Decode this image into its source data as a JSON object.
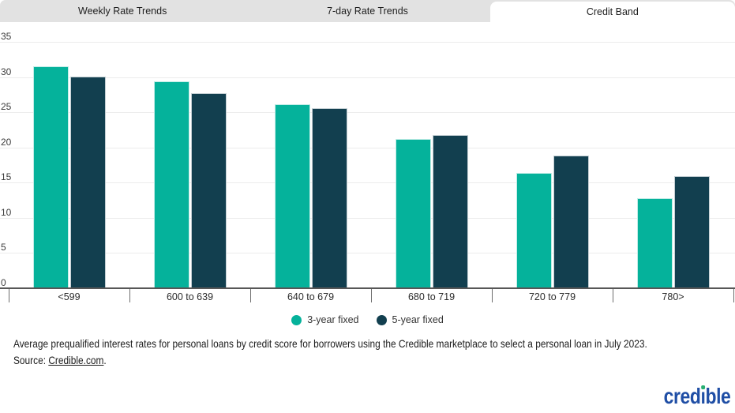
{
  "tabs": [
    {
      "label": "Weekly Rate Trends",
      "active": false
    },
    {
      "label": "7-day Rate Trends",
      "active": false
    },
    {
      "label": "Credit Band",
      "active": true
    }
  ],
  "chart_data": {
    "type": "bar",
    "title": "",
    "xlabel": "",
    "ylabel": "",
    "categories": [
      "<599",
      "600 to 639",
      "640 to 679",
      "680 to 719",
      "720 to 779",
      "780>"
    ],
    "series": [
      {
        "name": "3-year fixed",
        "color": "#05B29B",
        "values": [
          31.5,
          29.4,
          26.2,
          21.2,
          16.4,
          12.8
        ]
      },
      {
        "name": "5-year fixed",
        "color": "#123F4F",
        "values": [
          30.1,
          27.7,
          25.6,
          21.8,
          18.8,
          15.9
        ]
      }
    ],
    "ylim": [
      0,
      35
    ],
    "yticks": [
      0,
      5,
      10,
      15,
      20,
      25,
      30,
      35
    ],
    "grid": true,
    "legend_position": "bottom"
  },
  "caption": {
    "line1": "Average prequalified interest rates for personal loans by credit score for borrowers using the Credible marketplace to select a personal loan in July 2023.",
    "source_prefix": "Source: ",
    "source_link": "Credible.com",
    "source_suffix": "."
  },
  "logo": {
    "part1": "cred",
    "dotless_i": "ı",
    "part2": "ble"
  },
  "colors": {
    "teal": "#05B29B",
    "dark_teal": "#123F4F",
    "tab_bg": "#E2E2E2",
    "grid": "#ECECEC",
    "axis": "#575757",
    "logo_blue": "#1F4EA5",
    "logo_green": "#29AF72"
  }
}
